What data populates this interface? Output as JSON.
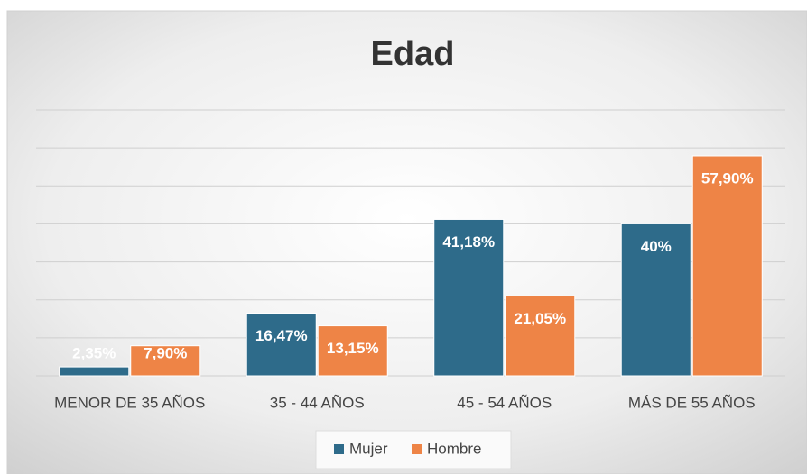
{
  "chart_data": {
    "type": "bar",
    "title": "Edad",
    "categories": [
      "MENOR DE 35 AÑOS",
      "35 - 44 AÑOS",
      "45 - 54 AÑOS",
      "MÁS DE 55 AÑOS"
    ],
    "series": [
      {
        "name": "Mujer",
        "color": "#2e6b8a",
        "values": [
          2.35,
          16.47,
          41.18,
          40
        ],
        "value_labels": [
          "2,35%",
          "16,47%",
          "41,18%",
          "40%"
        ]
      },
      {
        "name": "Hombre",
        "color": "#ee8446",
        "values": [
          7.9,
          13.15,
          21.05,
          57.9
        ],
        "value_labels": [
          "7,90%",
          "13,15%",
          "21,05%",
          "57,90%"
        ]
      }
    ],
    "ylim": [
      0,
      70
    ],
    "yticks": [
      0,
      10,
      20,
      30,
      40,
      50,
      60,
      70
    ],
    "grid": true,
    "legend": "bottom"
  }
}
